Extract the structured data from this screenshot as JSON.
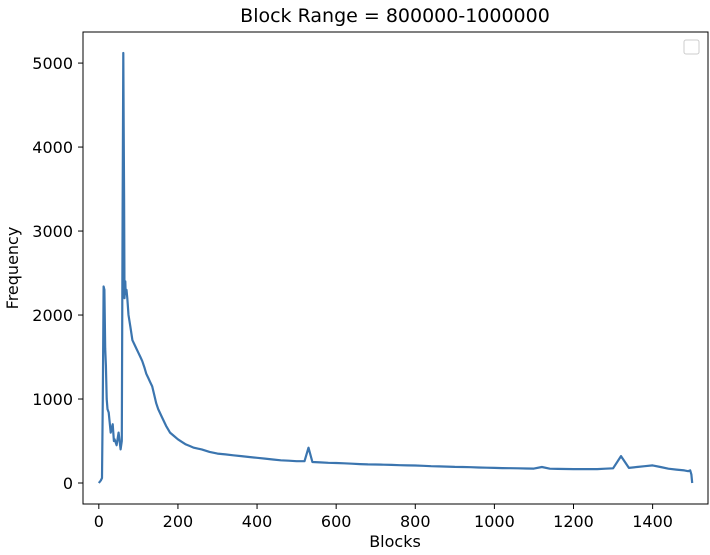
{
  "chart_data": {
    "type": "line",
    "title": "Block Range = 800000-1000000",
    "xlabel": "Blocks",
    "ylabel": "Frequency",
    "xlim": [
      -40,
      1540
    ],
    "ylim": [
      -250,
      5370
    ],
    "xticks": [
      0,
      200,
      400,
      600,
      800,
      1000,
      1200,
      1400
    ],
    "yticks": [
      0,
      1000,
      2000,
      3000,
      4000,
      5000
    ],
    "grid": false,
    "legend": "top-right",
    "legend_entries": [],
    "series": [
      {
        "color": "#3b75af",
        "x": [
          0,
          5,
          8,
          10,
          12,
          14,
          16,
          18,
          20,
          22,
          25,
          30,
          35,
          38,
          40,
          45,
          50,
          55,
          58,
          60,
          62,
          63,
          64,
          65,
          66,
          67,
          68,
          70,
          72,
          75,
          80,
          85,
          90,
          95,
          100,
          105,
          110,
          115,
          120,
          125,
          130,
          135,
          140,
          145,
          150,
          160,
          170,
          180,
          190,
          200,
          210,
          220,
          230,
          240,
          250,
          260,
          280,
          300,
          320,
          340,
          360,
          380,
          400,
          420,
          440,
          460,
          480,
          500,
          520,
          530,
          540,
          560,
          580,
          600,
          620,
          640,
          660,
          680,
          700,
          720,
          740,
          760,
          780,
          800,
          820,
          840,
          860,
          880,
          900,
          920,
          940,
          960,
          980,
          1000,
          1020,
          1040,
          1060,
          1080,
          1100,
          1120,
          1140,
          1160,
          1180,
          1200,
          1220,
          1240,
          1260,
          1280,
          1300,
          1320,
          1340,
          1360,
          1380,
          1400,
          1420,
          1440,
          1460,
          1480,
          1490,
          1495,
          1498,
          1500
        ],
        "values": [
          0,
          30,
          60,
          1000,
          2340,
          2300,
          1600,
          1400,
          1000,
          880,
          840,
          600,
          700,
          500,
          520,
          450,
          600,
          400,
          500,
          3200,
          5120,
          4200,
          3400,
          2200,
          2300,
          2400,
          2250,
          2300,
          2200,
          2000,
          1850,
          1700,
          1650,
          1600,
          1550,
          1500,
          1450,
          1380,
          1300,
          1250,
          1200,
          1150,
          1050,
          950,
          880,
          780,
          680,
          600,
          560,
          520,
          490,
          460,
          440,
          420,
          410,
          400,
          370,
          350,
          340,
          330,
          320,
          310,
          300,
          290,
          280,
          270,
          265,
          260,
          260,
          420,
          250,
          245,
          240,
          238,
          235,
          230,
          225,
          222,
          220,
          218,
          215,
          212,
          210,
          208,
          205,
          200,
          198,
          195,
          192,
          190,
          188,
          185,
          182,
          180,
          178,
          176,
          175,
          173,
          172,
          190,
          170,
          168,
          167,
          166,
          165,
          165,
          166,
          170,
          175,
          320,
          180,
          190,
          200,
          210,
          190,
          170,
          160,
          150,
          140,
          150,
          100,
          0
        ]
      }
    ]
  }
}
